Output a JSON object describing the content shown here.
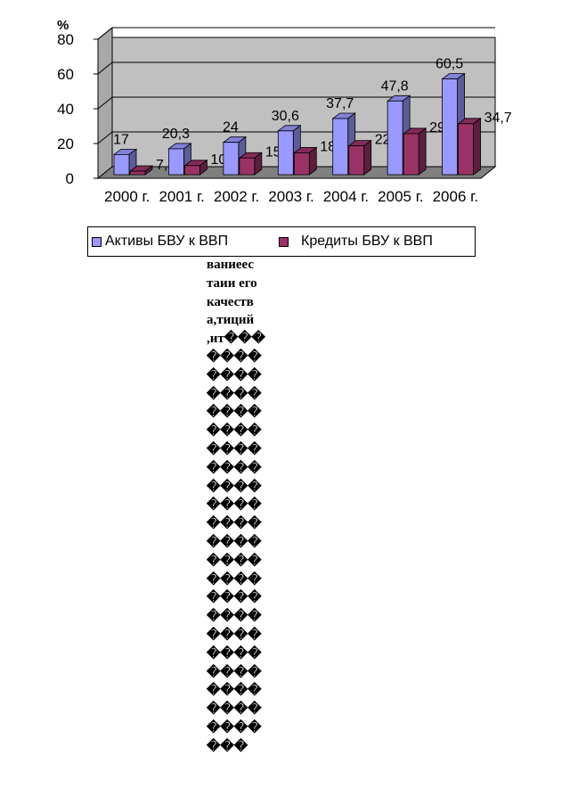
{
  "chart_data": {
    "type": "bar",
    "unit_label": "%",
    "categories": [
      "2000 г.",
      "2001 г.",
      "2002  г.",
      "2003 г.",
      "2004 г.",
      "2005 г.",
      "2006 г."
    ],
    "series": [
      {
        "name": "Активы БВУ  к ВВП",
        "values": [
          17,
          20.3,
          24,
          30.6,
          37.7,
          47.8,
          60.5
        ],
        "labels": [
          "17",
          "20,3",
          "24",
          "30,6",
          "37,7",
          "47,8",
          "60,5"
        ],
        "color": "#9999ff"
      },
      {
        "name": "Кредиты БВУ  к ВВП",
        "values": [
          7.4,
          10.6,
          15,
          18,
          22,
          29,
          34.7
        ],
        "labels": [
          "7,4",
          "10,6",
          "15",
          "18",
          "22",
          "29",
          "34,7"
        ],
        "color": "#993366"
      }
    ],
    "yticks": [
      "0",
      "20",
      "40",
      "60",
      "80"
    ],
    "ylim": [
      0,
      80
    ],
    "grid": true,
    "legend_position": "bottom",
    "plot_background": "#c0c0c0"
  },
  "garbled_text": [
    "ваниеес",
    "таии его",
    "качеств",
    "а,тиций",
    ",ит���",
    "����",
    "����",
    "����",
    "����",
    "����",
    "����",
    "����",
    "����",
    "����",
    "����",
    "����",
    "����",
    "����",
    "����",
    "����",
    "����",
    "����",
    "����",
    "����",
    "����",
    "����",
    "���"
  ]
}
